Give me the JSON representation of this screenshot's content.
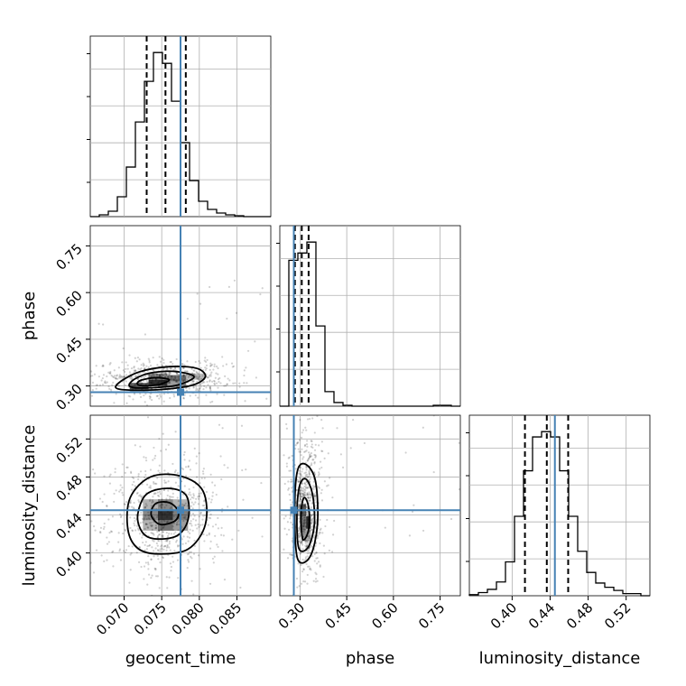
{
  "chart_data": {
    "type": "corner",
    "params": [
      "geocent_time",
      "phase",
      "luminosity_distance"
    ],
    "truth": [
      0.0775,
      0.28,
      0.445
    ],
    "truth_color": "#4682b4",
    "axes": {
      "geocent_time": {
        "range": [
          0.0655,
          0.0895
        ],
        "ticks": [
          0.07,
          0.075,
          0.08,
          0.085
        ],
        "tick_labels": [
          "0.070",
          "0.075",
          "0.080",
          "0.085"
        ]
      },
      "phase": {
        "range": [
          0.235,
          0.815
        ],
        "ticks": [
          0.3,
          0.45,
          0.6,
          0.75
        ],
        "tick_labels": [
          "0.30",
          "0.45",
          "0.60",
          "0.75"
        ]
      },
      "luminosity_distance": {
        "range": [
          0.355,
          0.545
        ],
        "ticks": [
          0.4,
          0.44,
          0.48,
          0.52
        ],
        "tick_labels": [
          "0.40",
          "0.44",
          "0.48",
          "0.52"
        ]
      }
    },
    "histograms": [
      {
        "param": "geocent_time",
        "quantiles": [
          0.073,
          0.0755,
          0.0782
        ],
        "bin_edges": [
          0.0655,
          0.0667,
          0.0679,
          0.0691,
          0.0703,
          0.0715,
          0.0727,
          0.0739,
          0.0751,
          0.0763,
          0.0775,
          0.0787,
          0.0799,
          0.0811,
          0.0823,
          0.0835,
          0.0847,
          0.0859,
          0.0871,
          0.0883,
          0.0895
        ],
        "counts": [
          0,
          2,
          6,
          22,
          55,
          105,
          150,
          182,
          170,
          128,
          82,
          40,
          17,
          8,
          4,
          2,
          1,
          0,
          0,
          0
        ]
      },
      {
        "param": "phase",
        "quantiles": [
          0.2835,
          0.3055,
          0.3275
        ],
        "bin_edges": [
          0.235,
          0.264,
          0.293,
          0.322,
          0.351,
          0.38,
          0.409,
          0.438,
          0.467,
          0.496,
          0.525,
          0.554,
          0.583,
          0.612,
          0.641,
          0.67,
          0.699,
          0.728,
          0.757,
          0.786,
          0.815
        ],
        "counts": [
          0,
          160,
          168,
          180,
          88,
          16,
          4,
          1,
          0,
          0,
          0,
          0,
          0,
          0,
          0,
          0,
          0,
          1,
          1,
          0
        ]
      },
      {
        "param": "luminosity_distance",
        "quantiles": [
          0.4135,
          0.4365,
          0.459
        ],
        "bin_edges": [
          0.355,
          0.3645,
          0.374,
          0.3835,
          0.393,
          0.4025,
          0.412,
          0.4215,
          0.431,
          0.4405,
          0.45,
          0.4595,
          0.469,
          0.4785,
          0.488,
          0.4975,
          0.507,
          0.5165,
          0.526,
          0.5355,
          0.545
        ],
        "counts": [
          1,
          3,
          6,
          13,
          32,
          75,
          118,
          150,
          155,
          150,
          118,
          75,
          42,
          22,
          12,
          8,
          5,
          2,
          2,
          0
        ]
      }
    ],
    "scatter_panels": [
      {
        "x": "geocent_time",
        "y": "phase",
        "contours": [
          [
            [
              0.073,
              0.3005
            ],
            [
              0.0748,
              0.3055
            ],
            [
              0.076,
              0.32
            ],
            [
              0.0742,
              0.3265
            ],
            [
              0.0722,
              0.318
            ],
            [
              0.0718,
              0.305
            ]
          ],
          [
            [
              0.0712,
              0.295
            ],
            [
              0.076,
              0.298
            ],
            [
              0.0785,
              0.315
            ],
            [
              0.0792,
              0.333
            ],
            [
              0.0765,
              0.347
            ],
            [
              0.0732,
              0.34
            ],
            [
              0.071,
              0.315
            ]
          ],
          [
            [
              0.0695,
              0.289
            ],
            [
              0.0745,
              0.288
            ],
            [
              0.079,
              0.302
            ],
            [
              0.0808,
              0.33
            ],
            [
              0.0796,
              0.357
            ],
            [
              0.076,
              0.362
            ],
            [
              0.072,
              0.345
            ],
            [
              0.0692,
              0.308
            ]
          ]
        ],
        "density_cells": [
          [
            0.0745,
            0.31,
            0.0025,
            0.02,
            0.95
          ],
          [
            0.072,
            0.3,
            0.0025,
            0.02,
            0.7
          ],
          [
            0.077,
            0.325,
            0.0025,
            0.02,
            0.65
          ],
          [
            0.0745,
            0.33,
            0.0025,
            0.02,
            0.55
          ],
          [
            0.072,
            0.285,
            0.0025,
            0.015,
            0.35
          ],
          [
            0.077,
            0.305,
            0.0025,
            0.02,
            0.45
          ],
          [
            0.0795,
            0.33,
            0.0025,
            0.02,
            0.3
          ]
        ]
      },
      {
        "x": "geocent_time",
        "y": "luminosity_distance",
        "contours": [
          [
            [
              0.0748,
              0.43
            ],
            [
              0.0768,
              0.434
            ],
            [
              0.0772,
              0.444
            ],
            [
              0.076,
              0.453
            ],
            [
              0.0742,
              0.452
            ],
            [
              0.0736,
              0.44
            ]
          ],
          [
            [
              0.074,
              0.415
            ],
            [
              0.077,
              0.418
            ],
            [
              0.0785,
              0.435
            ],
            [
              0.0783,
              0.46
            ],
            [
              0.076,
              0.468
            ],
            [
              0.073,
              0.462
            ],
            [
              0.0718,
              0.44
            ],
            [
              0.0724,
              0.422
            ]
          ],
          [
            [
              0.0745,
              0.399
            ],
            [
              0.0785,
              0.404
            ],
            [
              0.0808,
              0.43
            ],
            [
              0.0805,
              0.465
            ],
            [
              0.0775,
              0.481
            ],
            [
              0.0735,
              0.48
            ],
            [
              0.0708,
              0.458
            ],
            [
              0.0705,
              0.425
            ],
            [
              0.0718,
              0.405
            ]
          ]
        ],
        "density_cells": [
          [
            0.0755,
            0.44,
            0.002,
            0.011,
            0.95
          ],
          [
            0.0775,
            0.44,
            0.002,
            0.011,
            0.6
          ],
          [
            0.0735,
            0.44,
            0.002,
            0.011,
            0.55
          ],
          [
            0.0755,
            0.429,
            0.002,
            0.011,
            0.65
          ],
          [
            0.0755,
            0.451,
            0.002,
            0.011,
            0.55
          ],
          [
            0.0775,
            0.429,
            0.002,
            0.011,
            0.45
          ],
          [
            0.0735,
            0.451,
            0.002,
            0.011,
            0.35
          ],
          [
            0.0775,
            0.451,
            0.002,
            0.011,
            0.35
          ],
          [
            0.0735,
            0.429,
            0.002,
            0.011,
            0.35
          ]
        ]
      },
      {
        "x": "phase",
        "y": "luminosity_distance",
        "contours": [
          [
            [
              0.308,
              0.415
            ],
            [
              0.324,
              0.42
            ],
            [
              0.33,
              0.435
            ],
            [
              0.325,
              0.452
            ],
            [
              0.312,
              0.458
            ],
            [
              0.303,
              0.442
            ]
          ],
          [
            [
              0.296,
              0.405
            ],
            [
              0.326,
              0.406
            ],
            [
              0.346,
              0.43
            ],
            [
              0.34,
              0.462
            ],
            [
              0.318,
              0.478
            ],
            [
              0.298,
              0.47
            ],
            [
              0.29,
              0.44
            ]
          ],
          [
            [
              0.292,
              0.394
            ],
            [
              0.332,
              0.396
            ],
            [
              0.356,
              0.43
            ],
            [
              0.35,
              0.475
            ],
            [
              0.32,
              0.493
            ],
            [
              0.292,
              0.487
            ],
            [
              0.283,
              0.445
            ]
          ]
        ],
        "density_cells": [
          [
            0.312,
            0.432,
            0.015,
            0.013,
            0.6
          ],
          [
            0.327,
            0.432,
            0.015,
            0.013,
            0.95
          ],
          [
            0.312,
            0.445,
            0.015,
            0.013,
            0.75
          ],
          [
            0.312,
            0.419,
            0.015,
            0.013,
            0.45
          ],
          [
            0.327,
            0.419,
            0.015,
            0.013,
            0.4
          ],
          [
            0.297,
            0.445,
            0.015,
            0.013,
            0.3
          ]
        ]
      }
    ],
    "grid": true
  }
}
